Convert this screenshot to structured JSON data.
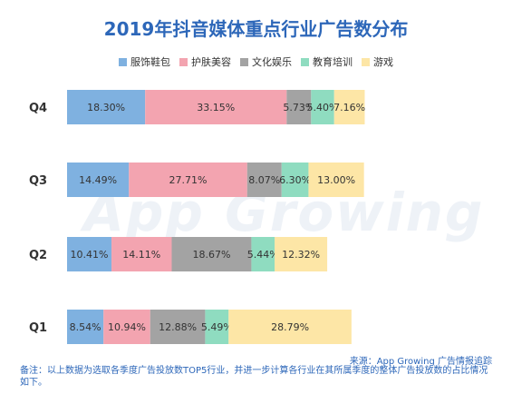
{
  "title": "2019年抖音媒体重点行业广告数分布",
  "source": "来源：App Growing 广告情报追踪",
  "note": "备注：以上数据为选取各季度广告投放数TOP5行业，并进一步计算各行业在其所属季度的整体广告投放数的占比情况如下。",
  "watermark": "App Growing",
  "chart_data": {
    "type": "bar",
    "orientation": "horizontal",
    "stacked": true,
    "categories": [
      "Q4",
      "Q3",
      "Q2",
      "Q1"
    ],
    "series": [
      {
        "name": "服饰鞋包",
        "color": "#7fb1e0",
        "values": [
          18.3,
          14.49,
          10.41,
          8.54
        ],
        "labels": [
          "18.30%",
          "14.49%",
          "10.41%",
          "8.54%"
        ]
      },
      {
        "name": "护肤美容",
        "color": "#f3a4b0",
        "values": [
          33.15,
          27.71,
          14.11,
          10.94
        ],
        "labels": [
          "33.15%",
          "27.71%",
          "14.11%",
          "10.94%"
        ]
      },
      {
        "name": "文化娱乐",
        "color": "#a3a3a3",
        "values": [
          5.73,
          8.07,
          18.67,
          12.88
        ],
        "labels": [
          "5.73%",
          "8.07%",
          "18.67%",
          "12.88%"
        ]
      },
      {
        "name": "教育培训",
        "color": "#8fdcc0",
        "values": [
          5.4,
          6.3,
          5.44,
          5.49
        ],
        "labels": [
          "5.40%",
          "6.30%",
          "5.44%",
          "5.49%"
        ]
      },
      {
        "name": "游戏",
        "color": "#fde6a6",
        "values": [
          7.16,
          13.0,
          12.32,
          28.79
        ],
        "labels": [
          "7.16%",
          "13.00%",
          "12.32%",
          "28.79%"
        ]
      }
    ]
  }
}
